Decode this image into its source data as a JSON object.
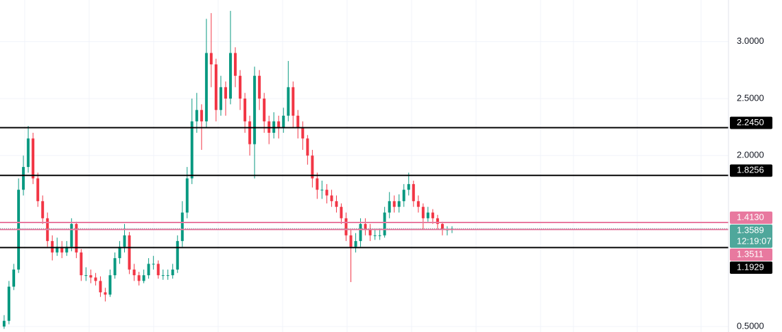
{
  "chart_data": {
    "type": "candlestick",
    "up_color": "#089981",
    "down_color": "#f23645",
    "ylim": [
      0.452,
      3.365
    ],
    "yticks": [
      {
        "value": 0.5,
        "label": "0.5000"
      },
      {
        "value": 2,
        "label": "2.0000"
      },
      {
        "value": 2.5,
        "label": "2.5000"
      },
      {
        "value": 3,
        "label": "3.0000"
      }
    ],
    "grid": true,
    "open": [
      0.5,
      0.55,
      0.85,
      1.0,
      1.7,
      1.9,
      2.15,
      1.8,
      1.6,
      1.45,
      1.25,
      1.15,
      1.2,
      1.15,
      1.2,
      1.4,
      1.15,
      0.95,
      0.95,
      0.93,
      0.9,
      0.8,
      0.78,
      0.95,
      1.1,
      1.2,
      1.3,
      1.0,
      0.95,
      0.9,
      0.95,
      1.05,
      1.05,
      0.95,
      0.95,
      0.95,
      1.0,
      1.25,
      1.5,
      1.8,
      2.3,
      2.4,
      2.3,
      2.9,
      2.8,
      2.4,
      2.6,
      2.5,
      2.9,
      2.7,
      2.5,
      2.3,
      2.1,
      2.7,
      2.5,
      2.3,
      2.2,
      2.3,
      2.25,
      2.35,
      2.6,
      2.35,
      2.25,
      2.15,
      2.0,
      1.8,
      1.7,
      1.7,
      1.65,
      1.6,
      1.55,
      1.45,
      1.3,
      1.2,
      1.25,
      1.4,
      1.35,
      1.3,
      1.3,
      1.3,
      1.5,
      1.6,
      1.55,
      1.6,
      1.7,
      1.75,
      1.6,
      1.55,
      1.45,
      1.5,
      1.45,
      1.4,
      1.35,
      1.35
    ],
    "high": [
      0.6,
      0.9,
      1.05,
      1.8,
      2.0,
      2.26,
      2.2,
      1.85,
      1.65,
      1.5,
      1.3,
      1.28,
      1.25,
      1.25,
      1.45,
      1.42,
      1.18,
      1.02,
      1.0,
      0.97,
      0.94,
      0.84,
      1.0,
      1.15,
      1.25,
      1.4,
      1.33,
      1.05,
      0.98,
      1.0,
      1.1,
      1.12,
      1.08,
      1.0,
      1.0,
      1.05,
      1.3,
      1.6,
      1.9,
      2.5,
      2.55,
      2.45,
      3.2,
      3.25,
      2.85,
      2.7,
      2.65,
      3.27,
      2.95,
      2.75,
      2.55,
      2.35,
      2.78,
      2.75,
      2.55,
      2.35,
      2.38,
      2.35,
      2.42,
      2.83,
      2.65,
      2.4,
      2.3,
      2.18,
      2.05,
      1.85,
      1.78,
      1.75,
      1.7,
      1.65,
      1.58,
      1.5,
      1.35,
      1.32,
      1.45,
      1.45,
      1.4,
      1.36,
      1.36,
      1.55,
      1.68,
      1.65,
      1.66,
      1.75,
      1.85,
      1.78,
      1.65,
      1.58,
      1.55,
      1.53,
      1.48,
      1.42,
      1.38,
      1.38
    ],
    "low": [
      0.48,
      0.52,
      0.82,
      0.97,
      1.65,
      1.85,
      1.75,
      1.55,
      1.4,
      1.2,
      1.08,
      1.12,
      1.1,
      1.12,
      1.16,
      1.1,
      0.9,
      0.9,
      0.88,
      0.86,
      0.76,
      0.72,
      0.76,
      0.92,
      1.05,
      1.15,
      0.96,
      0.9,
      0.86,
      0.88,
      0.92,
      1.0,
      0.92,
      0.91,
      0.91,
      0.92,
      0.97,
      1.2,
      1.45,
      1.75,
      2.2,
      2.05,
      2.25,
      2.6,
      2.3,
      2.35,
      2.35,
      2.45,
      2.6,
      2.4,
      2.2,
      2.0,
      1.8,
      2.4,
      2.2,
      2.1,
      2.15,
      2.15,
      2.2,
      2.3,
      2.25,
      2.15,
      2.05,
      1.92,
      1.72,
      1.62,
      1.62,
      1.58,
      1.55,
      1.5,
      1.4,
      1.25,
      0.89,
      1.15,
      1.2,
      1.3,
      1.25,
      1.26,
      1.26,
      1.28,
      1.45,
      1.5,
      1.5,
      1.55,
      1.65,
      1.55,
      1.5,
      1.35,
      1.42,
      1.4,
      1.35,
      1.3,
      1.3,
      1.32
    ],
    "close": [
      0.55,
      0.85,
      1.0,
      1.7,
      1.9,
      2.15,
      1.8,
      1.6,
      1.45,
      1.25,
      1.15,
      1.2,
      1.15,
      1.2,
      1.4,
      1.15,
      0.95,
      0.95,
      0.93,
      0.9,
      0.8,
      0.78,
      0.95,
      1.1,
      1.2,
      1.3,
      1.0,
      0.95,
      0.9,
      0.95,
      1.05,
      1.05,
      0.95,
      0.95,
      0.95,
      1.0,
      1.25,
      1.5,
      1.8,
      2.3,
      2.4,
      2.3,
      2.9,
      2.8,
      2.4,
      2.6,
      2.5,
      2.9,
      2.7,
      2.5,
      2.3,
      2.1,
      2.7,
      2.5,
      2.3,
      2.2,
      2.3,
      2.25,
      2.35,
      2.6,
      2.35,
      2.25,
      2.15,
      2.0,
      1.8,
      1.7,
      1.7,
      1.65,
      1.6,
      1.55,
      1.45,
      1.3,
      1.2,
      1.25,
      1.4,
      1.35,
      1.3,
      1.3,
      1.3,
      1.5,
      1.6,
      1.55,
      1.6,
      1.7,
      1.75,
      1.6,
      1.55,
      1.45,
      1.5,
      1.45,
      1.4,
      1.35,
      1.35,
      1.3589
    ],
    "levels": [
      {
        "value": 2.245,
        "label": "2.2450",
        "color": "#000000"
      },
      {
        "value": 1.8256,
        "label": "1.8256",
        "color": "#000000"
      },
      {
        "value": 1.413,
        "label": "1.4130",
        "color": "#e8799f"
      },
      {
        "value": 1.3511,
        "label": "1.3511",
        "color": "#e8799f"
      },
      {
        "value": 1.1929,
        "label": "1.1929",
        "color": "#000000"
      }
    ],
    "current": {
      "value": 1.3589,
      "label": "1.3589",
      "countdown": "12:19:07",
      "color": "#4fa79b"
    }
  }
}
